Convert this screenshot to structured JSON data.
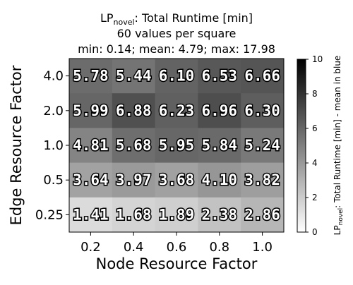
{
  "chart_data": {
    "type": "heatmap",
    "title": {
      "main_prefix": "LP",
      "main_subscript": "novel",
      "main_suffix": ": Total Runtime [min]",
      "line2": "60 values per square",
      "line3": "min: 0.14; mean: 4.79; max: 17.98"
    },
    "xlabel": "Node Resource Factor",
    "ylabel": "Edge Resource Factor",
    "x_categories": [
      "0.2",
      "0.4",
      "0.6",
      "0.8",
      "1.0"
    ],
    "y_categories": [
      "4.0",
      "2.0",
      "1.0",
      "0.5",
      "0.25"
    ],
    "values": [
      [
        5.78,
        5.44,
        6.1,
        6.53,
        6.66
      ],
      [
        5.99,
        6.88,
        6.23,
        6.96,
        6.3
      ],
      [
        4.81,
        5.68,
        5.95,
        5.84,
        5.24
      ],
      [
        3.64,
        3.97,
        3.68,
        4.1,
        3.82
      ],
      [
        1.41,
        1.68,
        1.89,
        2.38,
        2.86
      ]
    ],
    "colorbar": {
      "range": [
        0,
        10
      ],
      "ticks": [
        "0",
        "2",
        "4",
        "6",
        "8",
        "10"
      ],
      "label_prefix": "LP",
      "label_subscript": "novel",
      "label_suffix": ": Total Runtime [min] - mean in blue",
      "colormap": "Greys"
    },
    "colors": {
      "cmap_low": "#ffffff",
      "cmap_high": "#000000",
      "label_fill": "#ffffff",
      "label_stroke": "#000000"
    }
  }
}
